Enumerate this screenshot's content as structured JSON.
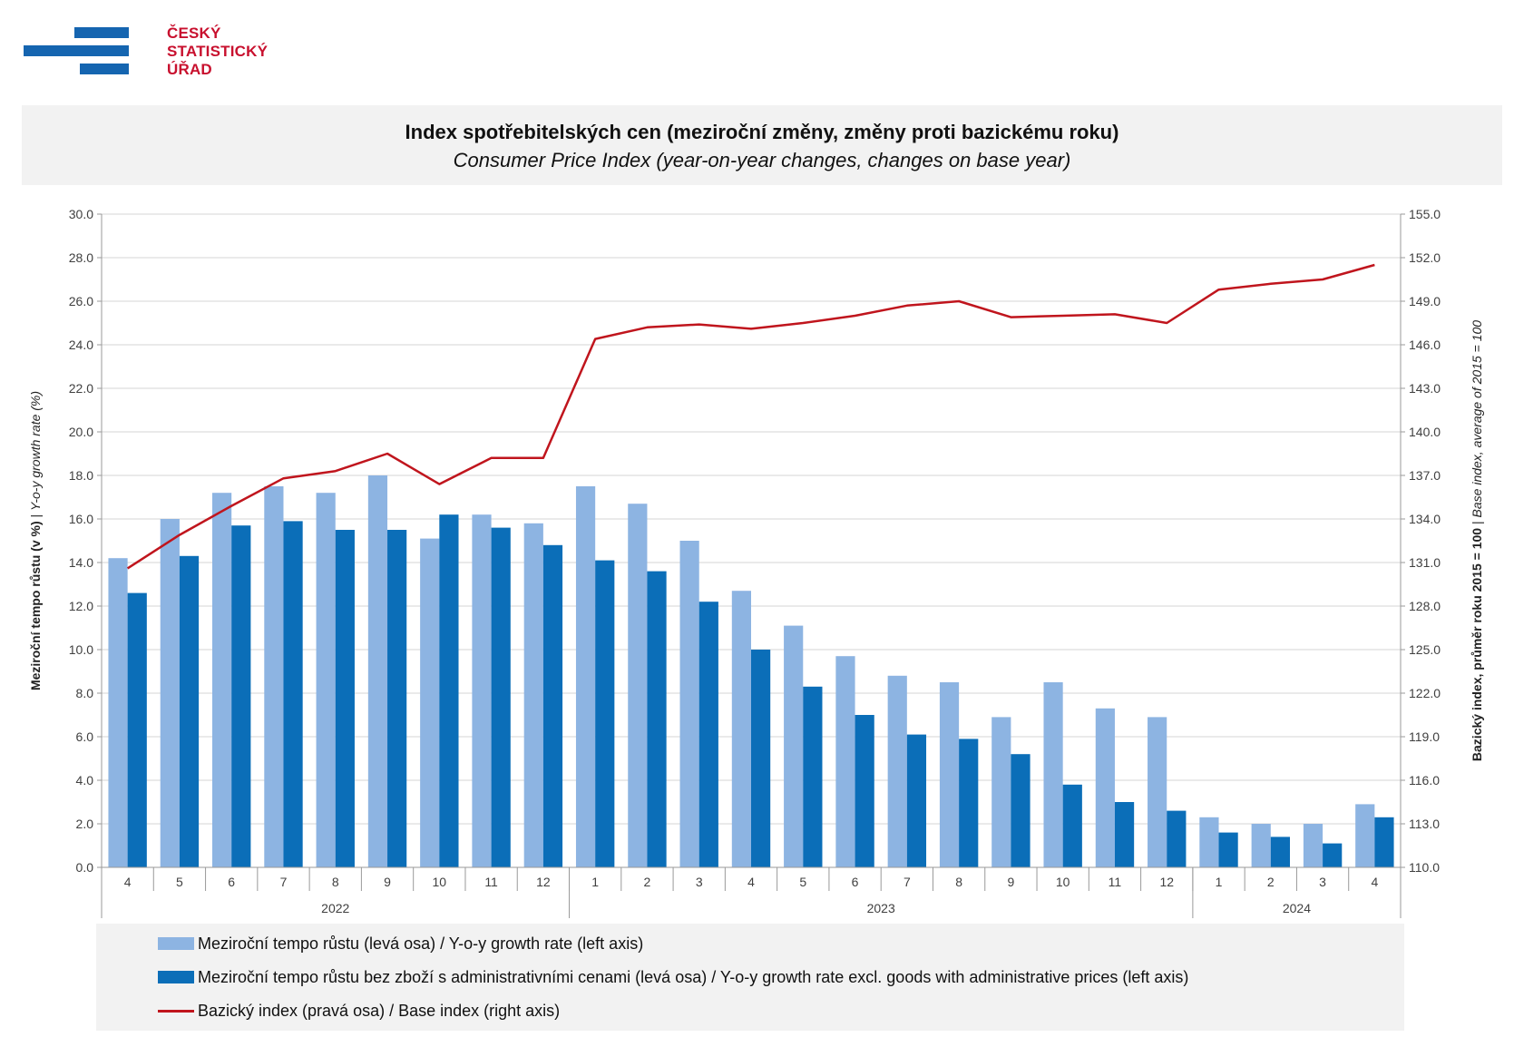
{
  "logo": {
    "line1": "ČESKÝ",
    "line2": "STATISTICKÝ",
    "line3": "ÚŘAD"
  },
  "title": {
    "cz": "Index spotřebitelských cen (meziroční změny, změny proti bazickému roku)",
    "en": "Consumer Price Index (year-on-year changes, changes on base year)"
  },
  "legend": {
    "s1": "Meziroční tempo růstu (levá osa) / Y-o-y growth rate (left axis)",
    "s2": "Meziroční tempo růstu bez zboží s administrativními cenami (levá osa) / Y-o-y growth rate excl. goods with administrative prices (left axis)",
    "s3": "Bazický index (pravá osa) / Base index (right axis)"
  },
  "colors": {
    "s1": "#8db4e2",
    "s2": "#0b6eb8",
    "s3": "#c0151d",
    "grid": "#d4d4d4",
    "axis": "#9a9a9a"
  },
  "chart_data": {
    "type": "bar",
    "categories": [
      "4",
      "5",
      "6",
      "7",
      "8",
      "9",
      "10",
      "11",
      "12",
      "1",
      "2",
      "3",
      "4",
      "5",
      "6",
      "7",
      "8",
      "9",
      "10",
      "11",
      "12",
      "1",
      "2",
      "3",
      "4"
    ],
    "year_groups": [
      {
        "label": "2022",
        "count": 9
      },
      {
        "label": "2023",
        "count": 12
      },
      {
        "label": "2024",
        "count": 4
      }
    ],
    "ylabel_left_bold": "Meziroční tempo růstu (v %)",
    "ylabel_left_sep": " | ",
    "ylabel_left_italic": "Y-o-y growth rate (%)",
    "ylabel_right_bold": "Bazický index, průměr roku 2015 = 100",
    "ylabel_right_sep": " | ",
    "ylabel_right_italic": "Base index, average of 2015 = 100",
    "ylim_left": [
      0,
      30
    ],
    "yticks_left": [
      "0.0",
      "2.0",
      "4.0",
      "6.0",
      "8.0",
      "10.0",
      "12.0",
      "14.0",
      "16.0",
      "18.0",
      "20.0",
      "22.0",
      "24.0",
      "26.0",
      "28.0",
      "30.0"
    ],
    "ylim_right": [
      110,
      155
    ],
    "yticks_right": [
      "110.0",
      "113.0",
      "116.0",
      "119.0",
      "122.0",
      "125.0",
      "128.0",
      "131.0",
      "134.0",
      "137.0",
      "140.0",
      "143.0",
      "146.0",
      "149.0",
      "152.0",
      "155.0"
    ],
    "grid": true,
    "legend_position": "bottom",
    "series": [
      {
        "axis": "left",
        "type": "bar",
        "values": [
          14.2,
          16.0,
          17.2,
          17.5,
          17.2,
          18.0,
          15.1,
          16.2,
          15.8,
          17.5,
          16.7,
          15.0,
          12.7,
          11.1,
          9.7,
          8.8,
          8.5,
          6.9,
          8.5,
          7.3,
          6.9,
          2.3,
          2.0,
          2.0,
          2.9
        ]
      },
      {
        "axis": "left",
        "type": "bar",
        "values": [
          12.6,
          14.3,
          15.7,
          15.9,
          15.5,
          15.5,
          16.2,
          15.6,
          14.8,
          14.1,
          13.6,
          12.2,
          10.0,
          8.3,
          7.0,
          6.1,
          5.9,
          5.2,
          3.8,
          3.0,
          2.6,
          1.6,
          1.4,
          1.1,
          2.3
        ]
      },
      {
        "axis": "right",
        "type": "line",
        "values": [
          130.6,
          132.9,
          134.9,
          136.8,
          137.3,
          138.5,
          136.4,
          138.2,
          138.2,
          146.4,
          147.2,
          147.4,
          147.1,
          147.5,
          148.0,
          148.7,
          149.0,
          147.9,
          148.0,
          148.1,
          147.5,
          149.8,
          150.2,
          150.5,
          151.5
        ]
      }
    ]
  }
}
